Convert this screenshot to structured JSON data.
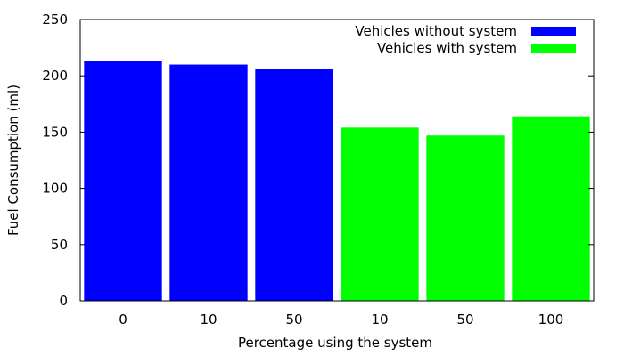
{
  "chart_data": {
    "type": "bar",
    "title": "",
    "xlabel": "Percentage using the system",
    "ylabel": "Fuel Consumption (ml)",
    "ylim": [
      0,
      250
    ],
    "yticks": [
      "0",
      "50",
      "100",
      "150",
      "200",
      "250"
    ],
    "categories": [
      "0",
      "10",
      "50",
      "10",
      "50",
      "100"
    ],
    "values": [
      213,
      210,
      206,
      154,
      147,
      164
    ],
    "bar_series": [
      0,
      0,
      0,
      1,
      1,
      1
    ],
    "grid": false,
    "legend_position": "top-right",
    "series": [
      {
        "name": "Vehicles without system",
        "color": "#0000ff"
      },
      {
        "name": "Vehicles with system",
        "color": "#00ff00"
      }
    ]
  }
}
